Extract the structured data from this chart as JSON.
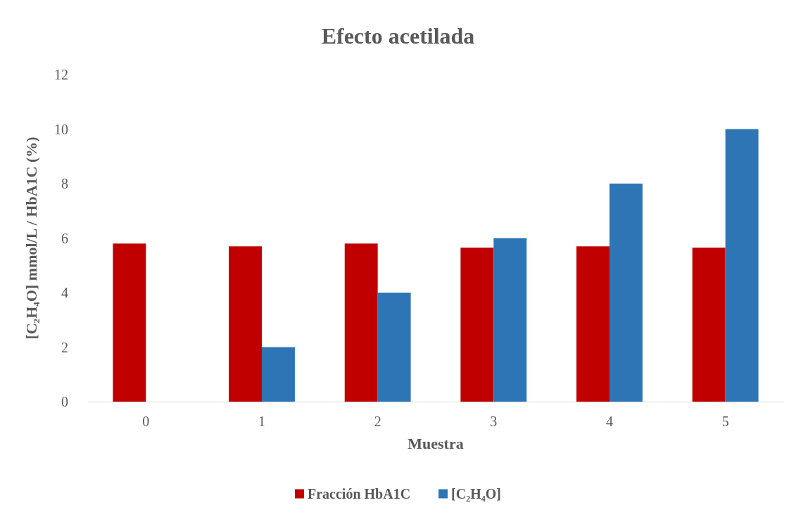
{
  "chart_data": {
    "type": "bar",
    "title": "Efecto acetilada",
    "xlabel": "Muestra",
    "ylabel": "[C₂H₄O] mmol/L / HbA1C (%)",
    "categories": [
      "0",
      "1",
      "2",
      "3",
      "4",
      "5"
    ],
    "series": [
      {
        "name": "Fracción HbA1C",
        "color": "#c00000",
        "values": [
          5.8,
          5.7,
          5.8,
          5.65,
          5.7,
          5.65
        ]
      },
      {
        "name": "[C₂H₄O]",
        "color": "#2e75b6",
        "values": [
          0,
          2,
          4,
          6,
          8,
          10
        ]
      }
    ],
    "ylim": [
      0,
      12
    ],
    "yticks": [
      0,
      2,
      4,
      6,
      8,
      10,
      12
    ],
    "grid": false,
    "legend": "bottom"
  }
}
